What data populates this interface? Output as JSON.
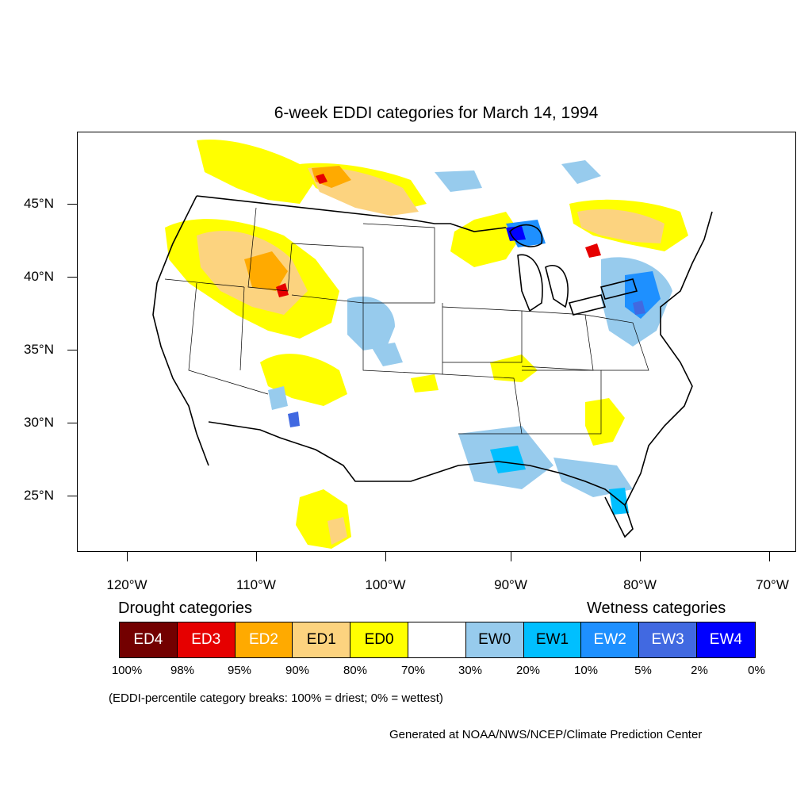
{
  "title": "6-week EDDI categories for March 14, 1994",
  "lat_labels": [
    "45°N",
    "40°N",
    "35°N",
    "30°N",
    "25°N"
  ],
  "lon_labels": [
    "120°W",
    "110°W",
    "100°W",
    "90°W",
    "80°W",
    "70°W"
  ],
  "drought_heading": "Drought categories",
  "wetness_heading": "Wetness categories",
  "legend": [
    {
      "label": "ED4",
      "color": "#730000",
      "text_color": "#ffffff"
    },
    {
      "label": "ED3",
      "color": "#e60000",
      "text_color": "#ffffff"
    },
    {
      "label": "ED2",
      "color": "#ffaa00",
      "text_color": "#ffffff"
    },
    {
      "label": "ED1",
      "color": "#fcd37f",
      "text_color": "#000000"
    },
    {
      "label": "ED0",
      "color": "#ffff00",
      "text_color": "#000000"
    },
    {
      "label": "",
      "color": "#ffffff",
      "text_color": "#000000"
    },
    {
      "label": "EW0",
      "color": "#97cbed",
      "text_color": "#000000"
    },
    {
      "label": "EW1",
      "color": "#00bfff",
      "text_color": "#000000"
    },
    {
      "label": "EW2",
      "color": "#1e90ff",
      "text_color": "#ffffff"
    },
    {
      "label": "EW3",
      "color": "#4169e1",
      "text_color": "#ffffff"
    },
    {
      "label": "EW4",
      "color": "#0000ff",
      "text_color": "#ffffff"
    }
  ],
  "percent_breaks": [
    "100%",
    "98%",
    "95%",
    "90%",
    "80%",
    "70%",
    "30%",
    "20%",
    "10%",
    "5%",
    "2%",
    "0%"
  ],
  "note": "(EDDI-percentile category breaks: 100% = driest; 0% = wettest)",
  "credit": "Generated at NOAA/NWS/NCEP/Climate Prediction Center"
}
